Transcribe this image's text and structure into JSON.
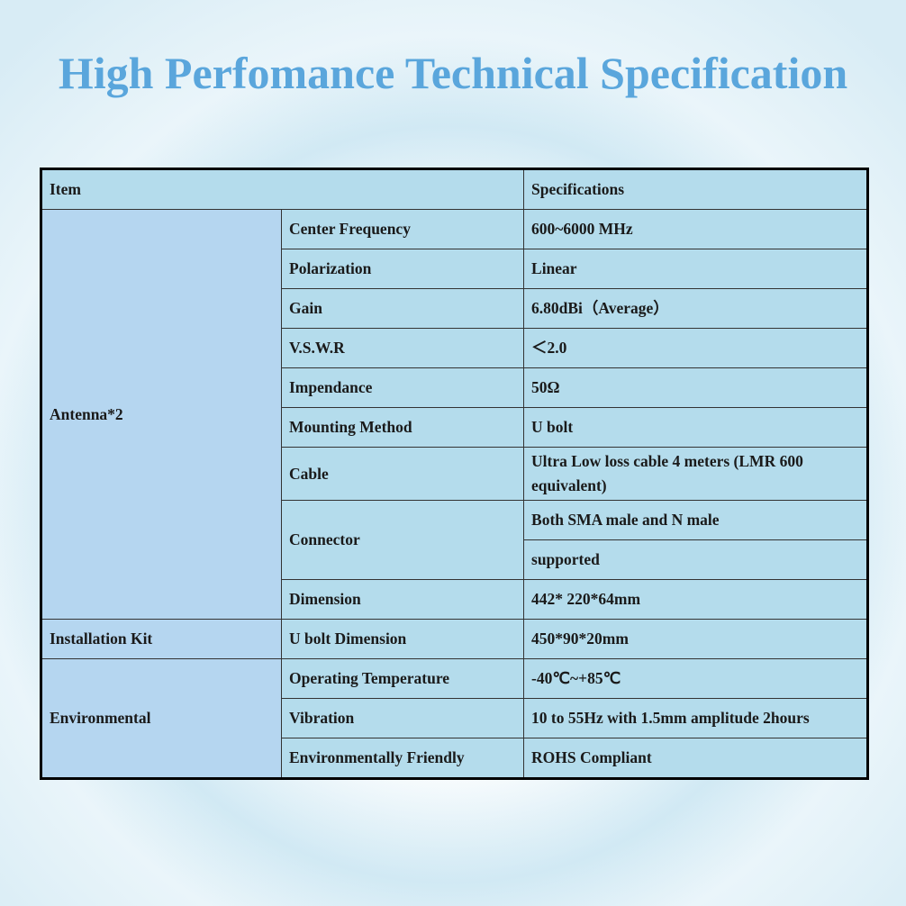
{
  "title": "High Perfomance Technical Specification",
  "table": {
    "header": [
      "Item",
      "Specifications"
    ],
    "groups": [
      {
        "label": "Antenna*2",
        "rows": [
          {
            "name": "Center Frequency",
            "specs": [
              "600~6000 MHz"
            ]
          },
          {
            "name": "Polarization",
            "specs": [
              "Linear"
            ]
          },
          {
            "name": "Gain",
            "specs": [
              "6.80dBi（Average）"
            ]
          },
          {
            "name": "V.S.W.R",
            "specs": [
              "＜2.0"
            ]
          },
          {
            "name": "Impendance",
            "specs": [
              "50Ω"
            ]
          },
          {
            "name": "Mounting Method",
            "specs": [
              "U bolt"
            ]
          },
          {
            "name": "Cable",
            "specs": [
              "Ultra Low loss cable 4 meters  (LMR 600 equivalent)"
            ]
          },
          {
            "name": "Connector",
            "specs": [
              "Both SMA male and N male",
              "supported"
            ]
          },
          {
            "name": "Dimension",
            "specs": [
              "442* 220*64mm"
            ]
          }
        ]
      },
      {
        "label": "Installation Kit",
        "rows": [
          {
            "name": "U bolt Dimension",
            "specs": [
              "450*90*20mm"
            ]
          }
        ]
      },
      {
        "label": "Environmental",
        "rows": [
          {
            "name": "Operating Temperature",
            "specs": [
              "-40℃~+85℃"
            ]
          },
          {
            "name": "Vibration",
            "specs": [
              "10 to 55Hz with 1.5mm amplitude 2hours"
            ]
          },
          {
            "name": "Environmentally Friendly",
            "specs": [
              "ROHS Compliant"
            ]
          }
        ]
      }
    ]
  }
}
